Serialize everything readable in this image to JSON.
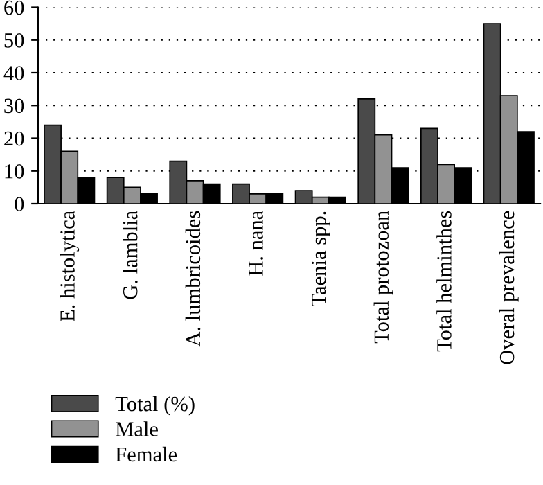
{
  "chart_data": {
    "type": "bar",
    "categories": [
      "E. histolytica",
      "G. lamblia",
      "A. lumbricoides",
      "H. nana",
      "Taenia spp.",
      "Total protozoan",
      "Total helminthes",
      "Overal prevalence"
    ],
    "series": [
      {
        "name": "Total (%)",
        "color": "#4a4a4a",
        "values": [
          24,
          8,
          13,
          6,
          4,
          32,
          23,
          55
        ]
      },
      {
        "name": "Male",
        "color": "#929292",
        "values": [
          16,
          5,
          7,
          3,
          2,
          21,
          12,
          33
        ]
      },
      {
        "name": "Female",
        "color": "#000000",
        "values": [
          8,
          3,
          6,
          3,
          2,
          11,
          11,
          22
        ]
      }
    ],
    "ylim": [
      0,
      60
    ],
    "yticks": [
      0,
      10,
      20,
      30,
      40,
      50,
      60
    ],
    "grid": "y",
    "legend": "bottom left"
  }
}
